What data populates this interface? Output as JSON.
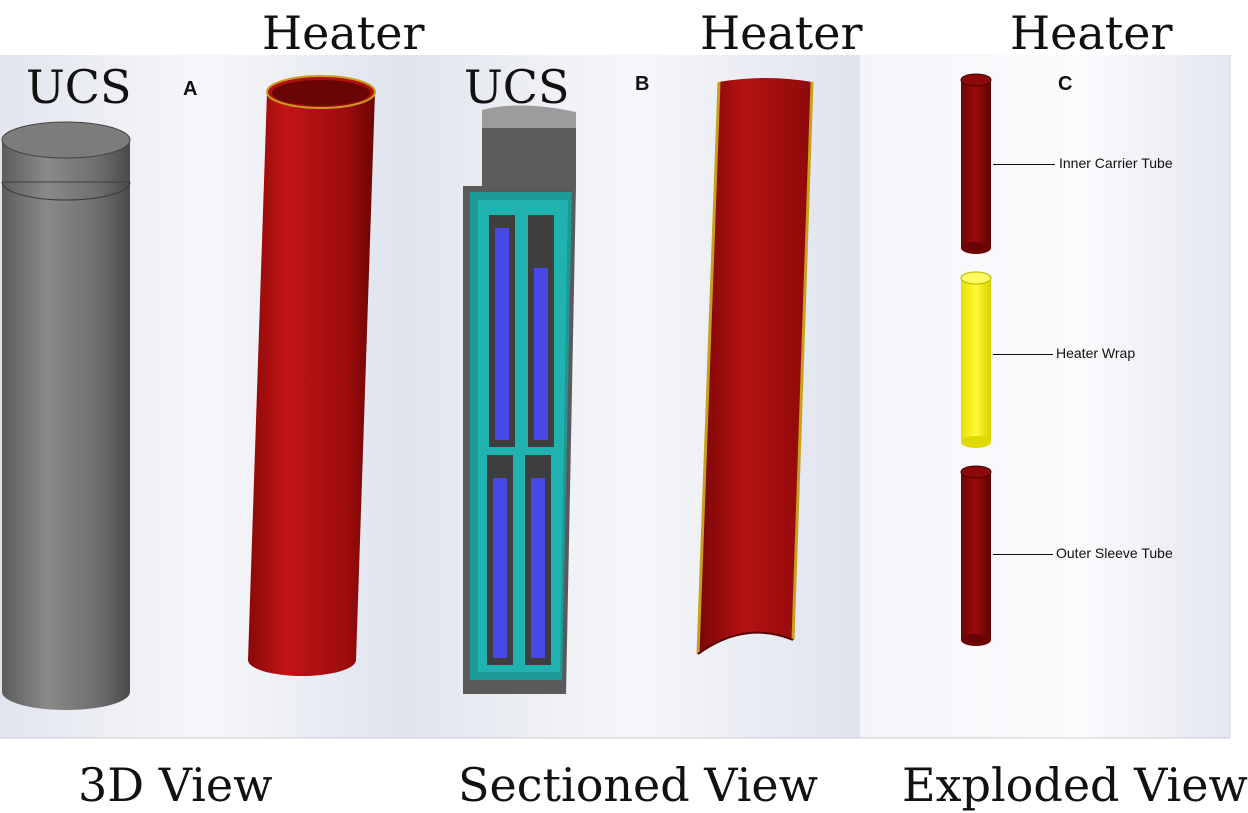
{
  "titles": {
    "heater_a": "Heater",
    "heater_b": "Heater",
    "heater_c": "Heater",
    "ucs_a": "UCS",
    "ucs_b": "UCS"
  },
  "panels": {
    "a": "A",
    "b": "B",
    "c": "C"
  },
  "views": {
    "a": "3D View",
    "b": "Sectioned View",
    "c": "Exploded View"
  },
  "callouts": {
    "inner": "Inner Carrier Tube",
    "wrap": "Heater Wrap",
    "outer": "Outer Sleeve Tube"
  },
  "colors": {
    "red": "#a40d0d",
    "yellow": "#f7f200",
    "gray": "#6b6b6b",
    "teal": "#1aa7a5",
    "blue": "#4a4ae6"
  }
}
